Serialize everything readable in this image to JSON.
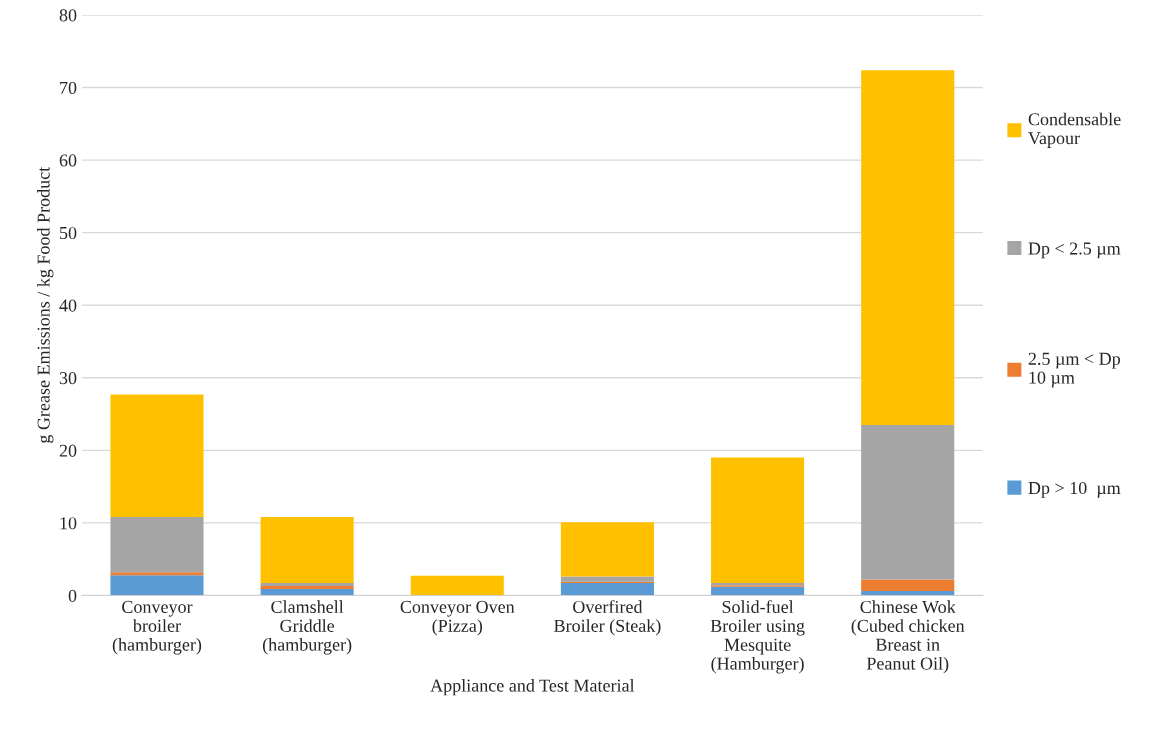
{
  "chart_data": {
    "type": "bar",
    "stacked": true,
    "xlabel": "Appliance and Test Material",
    "ylabel": "g Grease Emissions / kg Food Product",
    "categories": [
      "Conveyor\nbroiler\n(hamburger)",
      "Clamshell\nGriddle\n(hamburger)",
      "Conveyor Oven\n(Pizza)",
      "Overfired\nBroiler (Steak)",
      "Solid-fuel\nBroiler using\nMesquite\n(Hamburger)",
      "Chinese Wok\n(Cubed chicken\nBreast in\nPeanut Oil)"
    ],
    "series": [
      {
        "name": "Dp > 10  µm",
        "color": "#5b9bd5",
        "values": [
          2.8,
          0.9,
          0,
          1.7,
          1.2,
          0.6
        ]
      },
      {
        "name": "2.5 µm < Dp\n10 µm",
        "color": "#ed7d31",
        "values": [
          0.4,
          0.4,
          0,
          0.2,
          0.2,
          1.6
        ]
      },
      {
        "name": "Dp < 2.5 µm",
        "color": "#a5a5a5",
        "values": [
          7.6,
          0.4,
          0,
          0.7,
          0.3,
          21.3
        ]
      },
      {
        "name": "Condensable\nVapour",
        "color": "#ffc000",
        "values": [
          16.9,
          9.1,
          2.7,
          7.5,
          17.3,
          48.9
        ]
      }
    ],
    "ylim": [
      0,
      80
    ],
    "yticks": [
      0,
      10,
      20,
      30,
      40,
      50,
      60,
      70,
      80
    ],
    "grid": "y",
    "legend": "right"
  }
}
